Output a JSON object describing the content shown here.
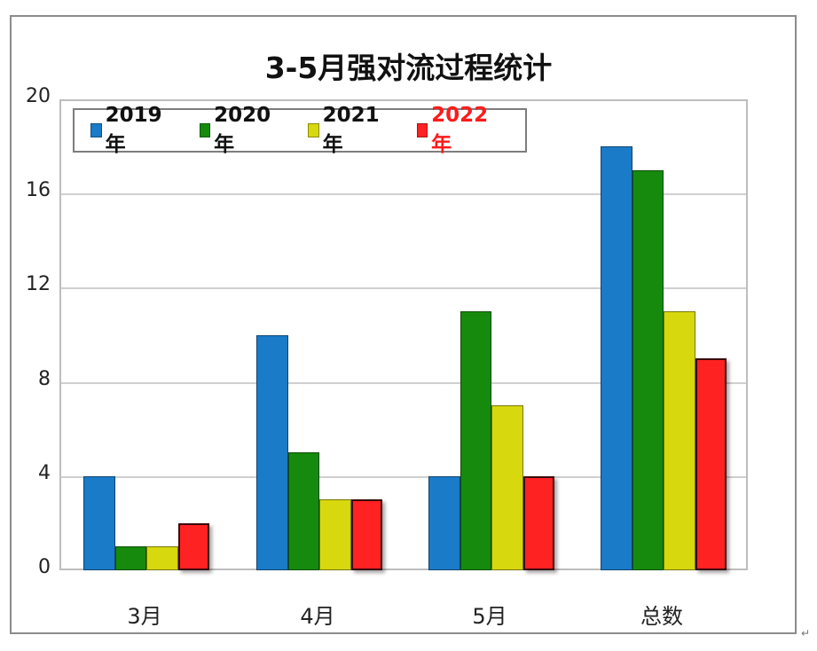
{
  "chart_data": {
    "type": "bar",
    "title": "3-5月强对流过程统计",
    "xlabel": "",
    "ylabel": "",
    "categories": [
      "3月",
      "4月",
      "5月",
      "总数"
    ],
    "series": [
      {
        "name": "2019年",
        "color": "#1a7bc8",
        "values": [
          4,
          10,
          4,
          18
        ]
      },
      {
        "name": "2020年",
        "color": "#168a0c",
        "values": [
          1,
          5,
          11,
          17
        ]
      },
      {
        "name": "2021年",
        "color": "#d8d80e",
        "values": [
          1,
          3,
          7,
          11
        ]
      },
      {
        "name": "2022年",
        "color": "#ff2222",
        "values": [
          2,
          3,
          4,
          9
        ]
      }
    ],
    "ylim": [
      0,
      20
    ],
    "yticks": [
      0,
      4,
      8,
      12,
      16,
      20
    ],
    "grid": true,
    "legend_position": "top-left inside",
    "legend_label_colors": [
      "#111111",
      "#111111",
      "#111111",
      "#ff1a1a"
    ]
  },
  "page": {
    "return_mark": "↵"
  }
}
